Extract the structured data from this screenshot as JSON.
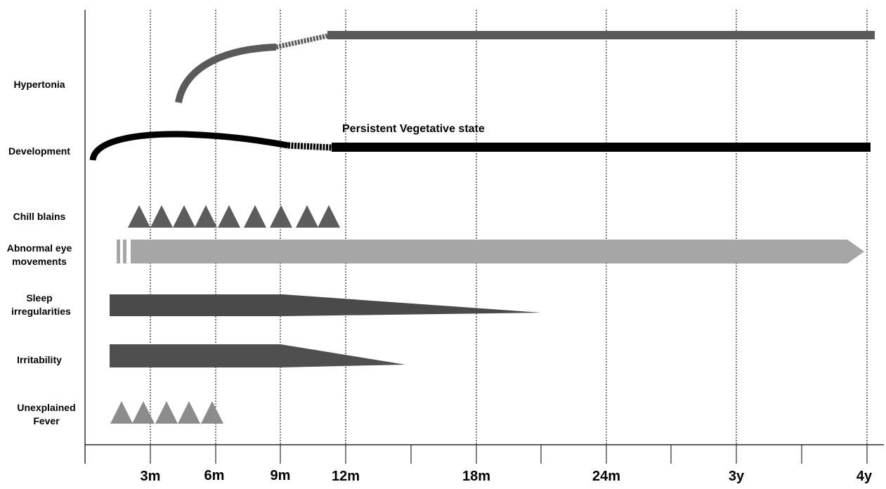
{
  "rows": {
    "hypertonia": "Hypertonia",
    "development": "Development",
    "chill_blains": "Chill blains",
    "abnormal_eye_movements": "Abnormal eye movements",
    "sleep_irregularities": "Sleep irregularities",
    "irritability": "Irritability",
    "unexplained_fever": "Unexplained Fever"
  },
  "annotation": "Persistent Vegetative state",
  "axis_ticks": [
    "3m",
    "6m",
    "9m",
    "12m",
    "18m",
    "24m",
    "3y",
    "4y"
  ],
  "colors": {
    "hypertonia": "#5a5a5a",
    "development": "#000000",
    "chill_blains": "#5c5c5c",
    "eye_movements": "#a6a6a6",
    "sleep": "#4a4a4a",
    "irritability": "#4f4f4f",
    "fever": "#8c8c8c"
  }
}
